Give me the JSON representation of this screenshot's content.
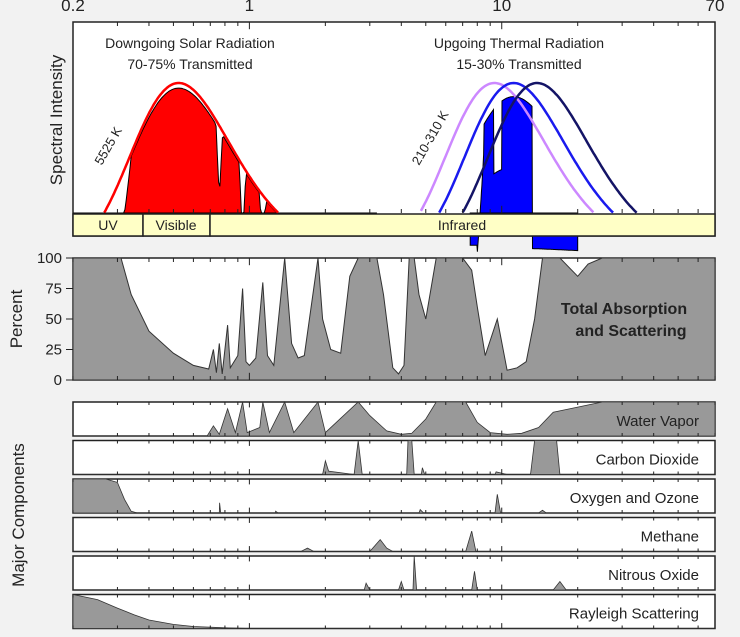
{
  "chart_data": [
    {
      "type": "area",
      "panel": "spectral-intensity",
      "x_scale": "log",
      "xlim": [
        0.2,
        70
      ],
      "x_tick_labels": [
        "0.2",
        "1",
        "10",
        "70"
      ],
      "ylabel": "Spectral Intensity",
      "annotations": {
        "solar_title": "Downgoing Solar Radiation",
        "solar_sub": "70-75% Transmitted",
        "thermal_title": "Upgoing Thermal Radiation",
        "thermal_sub": "15-30% Transmitted",
        "solar_temp": "5525 K",
        "thermal_temp": "210-310 K"
      },
      "bands": [
        {
          "label": "UV",
          "from": 0.2,
          "to": 0.4
        },
        {
          "label": "Visible",
          "from": 0.4,
          "to": 0.7
        },
        {
          "label": "Infrared",
          "from": 0.7,
          "to": 70
        }
      ],
      "series": [
        {
          "temp_K": 5525,
          "peak_um": 0.52,
          "color": "#ff0000",
          "curve": "blackbody"
        },
        {
          "temp_K": 310,
          "peak_um": 9.3,
          "color": "#cc88ff",
          "curve": "blackbody"
        },
        {
          "temp_K": 260,
          "peak_um": 11.1,
          "color": "#1a1aee",
          "curve": "blackbody"
        },
        {
          "temp_K": 210,
          "peak_um": 13.8,
          "color": "#141466",
          "curve": "blackbody"
        }
      ],
      "colors": {
        "solar_fill": "#ff0000",
        "thermal_fill": "#0000ff",
        "band_fill": "#ffffc6"
      }
    },
    {
      "type": "area",
      "panel": "total-absorption",
      "x_scale": "log",
      "xlim": [
        0.2,
        70
      ],
      "ylabel": "Percent",
      "ylim": [
        0,
        100
      ],
      "y_ticks": [
        "0",
        "25",
        "50",
        "75",
        "100"
      ],
      "label_line1": "Total Absorption",
      "label_line2": "and Scattering",
      "fill": "#999999",
      "points": [
        [
          0.2,
          100
        ],
        [
          0.31,
          100
        ],
        [
          0.34,
          70
        ],
        [
          0.4,
          40
        ],
        [
          0.5,
          22
        ],
        [
          0.6,
          12
        ],
        [
          0.69,
          9
        ],
        [
          0.72,
          25
        ],
        [
          0.74,
          6
        ],
        [
          0.76,
          30
        ],
        [
          0.78,
          5
        ],
        [
          0.82,
          45
        ],
        [
          0.84,
          10
        ],
        [
          0.9,
          20
        ],
        [
          0.94,
          75
        ],
        [
          0.97,
          15
        ],
        [
          1.0,
          12
        ],
        [
          1.06,
          18
        ],
        [
          1.13,
          80
        ],
        [
          1.18,
          20
        ],
        [
          1.25,
          12
        ],
        [
          1.38,
          100
        ],
        [
          1.47,
          30
        ],
        [
          1.56,
          18
        ],
        [
          1.65,
          20
        ],
        [
          1.87,
          100
        ],
        [
          1.95,
          50
        ],
        [
          2.1,
          25
        ],
        [
          2.3,
          22
        ],
        [
          2.5,
          85
        ],
        [
          2.7,
          100
        ],
        [
          2.9,
          100
        ],
        [
          3.2,
          100
        ],
        [
          3.4,
          70
        ],
        [
          3.7,
          10
        ],
        [
          3.9,
          5
        ],
        [
          4.1,
          12
        ],
        [
          4.3,
          100
        ],
        [
          4.5,
          100
        ],
        [
          4.7,
          70
        ],
        [
          5.0,
          50
        ],
        [
          5.5,
          100
        ],
        [
          6.0,
          100
        ],
        [
          7.0,
          100
        ],
        [
          7.6,
          90
        ],
        [
          8.0,
          60
        ],
        [
          8.6,
          20
        ],
        [
          9.6,
          50
        ],
        [
          10.5,
          8
        ],
        [
          11.5,
          10
        ],
        [
          12.5,
          15
        ],
        [
          13.5,
          50
        ],
        [
          14.5,
          100
        ],
        [
          17,
          100
        ],
        [
          20,
          85
        ],
        [
          22,
          95
        ],
        [
          25,
          100
        ],
        [
          70,
          100
        ]
      ]
    },
    {
      "type": "area",
      "panel": "major-components",
      "x_scale": "log",
      "xlim": [
        0.2,
        70
      ],
      "ylabel": "Major Components",
      "fill": "#999999",
      "series": [
        {
          "name": "Water Vapor",
          "points": [
            [
              0.2,
              0
            ],
            [
              0.68,
              0
            ],
            [
              0.72,
              30
            ],
            [
              0.76,
              5
            ],
            [
              0.82,
              80
            ],
            [
              0.88,
              10
            ],
            [
              0.94,
              100
            ],
            [
              0.98,
              10
            ],
            [
              1.1,
              25
            ],
            [
              1.13,
              100
            ],
            [
              1.2,
              10
            ],
            [
              1.38,
              100
            ],
            [
              1.5,
              10
            ],
            [
              1.87,
              100
            ],
            [
              2.0,
              10
            ],
            [
              2.7,
              100
            ],
            [
              3.0,
              60
            ],
            [
              3.5,
              15
            ],
            [
              4.0,
              5
            ],
            [
              4.4,
              8
            ],
            [
              5.0,
              50
            ],
            [
              5.5,
              100
            ],
            [
              7.2,
              100
            ],
            [
              8.0,
              40
            ],
            [
              9.0,
              10
            ],
            [
              10.5,
              5
            ],
            [
              12,
              8
            ],
            [
              14,
              25
            ],
            [
              16,
              70
            ],
            [
              20,
              85
            ],
            [
              25,
              100
            ],
            [
              70,
              100
            ]
          ]
        },
        {
          "name": "Carbon Dioxide",
          "points": [
            [
              0.2,
              0
            ],
            [
              1.95,
              0
            ],
            [
              2.0,
              40
            ],
            [
              2.06,
              10
            ],
            [
              2.6,
              0
            ],
            [
              2.7,
              100
            ],
            [
              2.8,
              0
            ],
            [
              4.2,
              0
            ],
            [
              4.25,
              100
            ],
            [
              4.4,
              100
            ],
            [
              4.5,
              0
            ],
            [
              4.8,
              0
            ],
            [
              4.85,
              20
            ],
            [
              4.95,
              0
            ],
            [
              9.4,
              0
            ],
            [
              9.5,
              8
            ],
            [
              10.5,
              0
            ],
            [
              13,
              0
            ],
            [
              13.5,
              100
            ],
            [
              16.5,
              100
            ],
            [
              17,
              0
            ],
            [
              70,
              0
            ]
          ]
        },
        {
          "name": "Oxygen and Ozone",
          "points": [
            [
              0.2,
              100
            ],
            [
              0.27,
              100
            ],
            [
              0.3,
              90
            ],
            [
              0.32,
              40
            ],
            [
              0.34,
              5
            ],
            [
              0.36,
              0
            ],
            [
              0.76,
              0
            ],
            [
              0.762,
              30
            ],
            [
              0.77,
              0
            ],
            [
              1.27,
              0
            ],
            [
              1.27,
              5
            ],
            [
              1.3,
              0
            ],
            [
              4.7,
              0
            ],
            [
              4.75,
              10
            ],
            [
              4.9,
              0
            ],
            [
              9.4,
              0
            ],
            [
              9.6,
              55
            ],
            [
              9.9,
              0
            ],
            [
              14,
              0
            ],
            [
              14.5,
              8
            ],
            [
              15,
              0
            ],
            [
              70,
              0
            ]
          ]
        },
        {
          "name": "Methane",
          "points": [
            [
              0.2,
              0
            ],
            [
              1.6,
              0
            ],
            [
              1.7,
              10
            ],
            [
              1.8,
              0
            ],
            [
              3.0,
              0
            ],
            [
              3.3,
              35
            ],
            [
              3.5,
              10
            ],
            [
              3.7,
              0
            ],
            [
              7.2,
              0
            ],
            [
              7.6,
              60
            ],
            [
              7.9,
              0
            ],
            [
              70,
              0
            ]
          ]
        },
        {
          "name": "Nitrous Oxide",
          "points": [
            [
              0.2,
              0
            ],
            [
              2.85,
              0
            ],
            [
              2.9,
              20
            ],
            [
              3.0,
              0
            ],
            [
              3.9,
              0
            ],
            [
              4.0,
              25
            ],
            [
              4.1,
              0
            ],
            [
              4.45,
              0
            ],
            [
              4.5,
              100
            ],
            [
              4.6,
              0
            ],
            [
              7.6,
              0
            ],
            [
              7.8,
              55
            ],
            [
              8.0,
              0
            ],
            [
              16,
              0
            ],
            [
              17,
              25
            ],
            [
              18,
              0
            ],
            [
              70,
              0
            ]
          ]
        },
        {
          "name": "Rayleigh Scattering",
          "points": [
            [
              0.2,
              100
            ],
            [
              0.25,
              85
            ],
            [
              0.3,
              60
            ],
            [
              0.35,
              40
            ],
            [
              0.4,
              25
            ],
            [
              0.5,
              12
            ],
            [
              0.6,
              6
            ],
            [
              0.8,
              2
            ],
            [
              1.0,
              0
            ],
            [
              70,
              0
            ]
          ]
        }
      ]
    }
  ]
}
